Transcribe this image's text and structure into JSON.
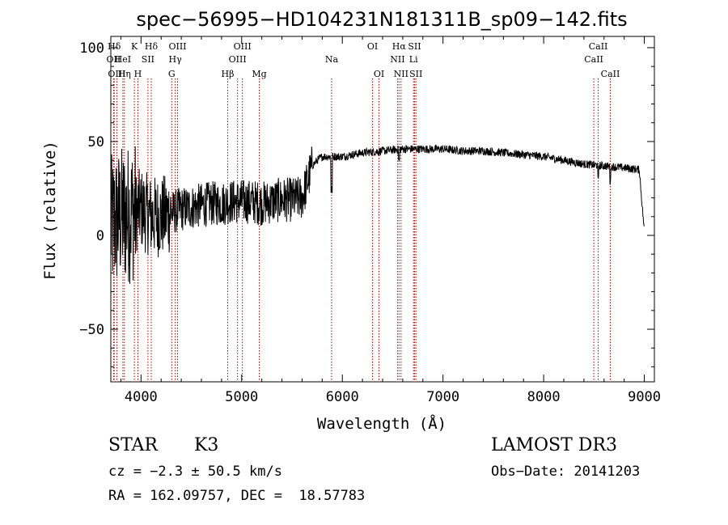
{
  "chart_data": {
    "type": "line",
    "title": "spec−56995−HD104231N181311B_sp09−142.fits",
    "xlabel": "Wavelength (Å)",
    "ylabel": "Flux (relative)",
    "xlim": [
      3700,
      9100
    ],
    "ylim": [
      -78,
      106
    ],
    "x_ticks": [
      4000,
      5000,
      6000,
      7000,
      8000,
      9000
    ],
    "y_ticks": [
      100,
      50,
      0,
      -50
    ],
    "y_tick_labels": [
      "100",
      "50",
      "0",
      "−50"
    ],
    "series": [
      {
        "name": "flux",
        "x": [
          3700,
          3800,
          3900,
          4000,
          4100,
          4200,
          4300,
          4400,
          4500,
          4600,
          4700,
          4800,
          4900,
          5000,
          5100,
          5200,
          5300,
          5400,
          5500,
          5600,
          5650,
          5700,
          5750,
          5800,
          5900,
          6000,
          6200,
          6400,
          6600,
          6800,
          7000,
          7200,
          7400,
          7600,
          7800,
          8000,
          8200,
          8400,
          8600,
          8800,
          8950,
          9000
        ],
        "y": [
          5,
          10,
          12,
          14,
          10,
          10,
          12,
          14,
          15,
          16,
          17,
          17,
          18,
          18,
          18,
          17,
          18,
          19,
          19,
          20,
          28,
          37,
          40,
          42,
          42,
          42,
          44,
          45,
          46,
          46,
          46,
          45,
          45,
          44,
          43,
          42,
          40,
          38,
          37,
          36,
          35,
          2
        ]
      }
    ],
    "line_color": "#000000",
    "marker_color": "#b30000",
    "lines": [
      {
        "label": "Hδ",
        "wave": 3734,
        "row": 0
      },
      {
        "label": "OII",
        "wave": 3727,
        "row": 1
      },
      {
        "label": "OIII",
        "wave": 3760,
        "row": 2
      },
      {
        "label": "HeI",
        "wave": 3820,
        "row": 1
      },
      {
        "label": "Hη",
        "wave": 3835,
        "row": 2
      },
      {
        "label": "K",
        "wave": 3934,
        "row": 0
      },
      {
        "label": "H",
        "wave": 3969,
        "row": 2
      },
      {
        "label": "SII",
        "wave": 4069,
        "row": 1
      },
      {
        "label": "Hδ",
        "wave": 4102,
        "row": 0
      },
      {
        "label": "G",
        "wave": 4305,
        "row": 2
      },
      {
        "label": "OIII",
        "wave": 4363,
        "row": 0
      },
      {
        "label": "Hγ",
        "wave": 4340,
        "row": 1
      },
      {
        "label": "Hβ",
        "wave": 4861,
        "row": 2
      },
      {
        "label": "OIII",
        "wave": 5007,
        "row": 0
      },
      {
        "label": "OIII",
        "wave": 4959,
        "row": 1
      },
      {
        "label": "Mg",
        "wave": 5175,
        "row": 2
      },
      {
        "label": "Na",
        "wave": 5893,
        "row": 1
      },
      {
        "label": "OI",
        "wave": 6300,
        "row": 0
      },
      {
        "label": "OI",
        "wave": 6364,
        "row": 2
      },
      {
        "label": "Hα",
        "wave": 6563,
        "row": 0
      },
      {
        "label": "NII",
        "wave": 6548,
        "row": 1
      },
      {
        "label": "NII",
        "wave": 6583,
        "row": 2
      },
      {
        "label": "SII",
        "wave": 6717,
        "row": 0
      },
      {
        "label": "Li",
        "wave": 6707,
        "row": 1
      },
      {
        "label": "SII",
        "wave": 6731,
        "row": 2
      },
      {
        "label": "CaII",
        "wave": 8542,
        "row": 0
      },
      {
        "label": "CaII",
        "wave": 8498,
        "row": 1
      },
      {
        "label": "CaII",
        "wave": 8662,
        "row": 2
      }
    ]
  },
  "info": {
    "class": "STAR",
    "subclass": "K3",
    "survey": "LAMOST DR3",
    "cz": "cz = −2.3 ± 50.5 km/s",
    "obs_date": "Obs−Date: 20141203",
    "radec": "RA = 162.09757, DEC =  18.57783"
  }
}
